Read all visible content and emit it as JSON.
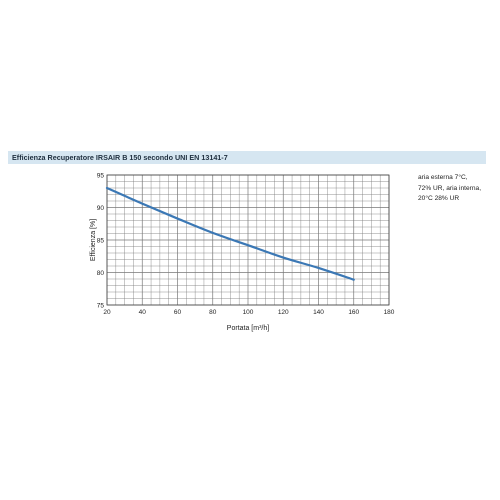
{
  "header": {
    "title": "Efficienza Recuperatore IRSAIR B 150 secondo UNI EN 13141-7"
  },
  "note": {
    "lines": [
      "aria esterna 7°C,",
      "72% UR, aria interna,",
      "20°C 28% UR"
    ]
  },
  "colors": {
    "title_bar_background": "#d6e6f1",
    "line": "#3b78b5",
    "grid": "#777777"
  },
  "chart_data": {
    "type": "line",
    "title": "Efficienza Recuperatore IRSAIR B 150 secondo UNI EN 13141-7",
    "xlabel": "Portata [m³/h]",
    "ylabel": "Efficienza [%]",
    "xlim": [
      20,
      180
    ],
    "ylim": [
      75,
      95
    ],
    "xticks": [
      20,
      40,
      60,
      80,
      100,
      120,
      140,
      160,
      180
    ],
    "yticks": [
      75,
      80,
      85,
      90,
      95
    ],
    "grid": true,
    "series": [
      {
        "x": [
          20,
          40,
          60,
          80,
          100,
          120,
          140,
          160
        ],
        "y": [
          93.0,
          90.6,
          88.3,
          86.1,
          84.2,
          82.3,
          80.7,
          78.9
        ]
      }
    ]
  }
}
